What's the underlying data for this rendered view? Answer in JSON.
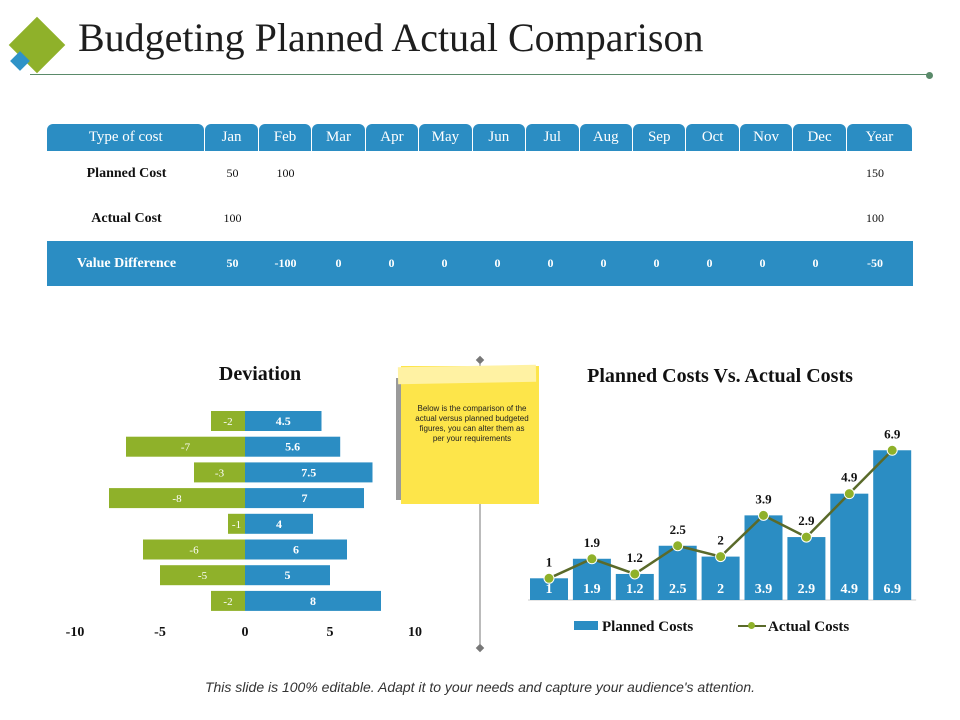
{
  "title": "Budgeting Planned Actual Comparison",
  "table": {
    "headers": [
      "Type of cost",
      "Jan",
      "Feb",
      "Mar",
      "Apr",
      "May",
      "Jun",
      "Jul",
      "Aug",
      "Sep",
      "Oct",
      "Nov",
      "Dec",
      "Year"
    ],
    "rows": [
      {
        "label": "Planned Cost",
        "cells": [
          "50",
          "100",
          "",
          "",
          "",
          "",
          "",
          "",
          "",
          "",
          "",
          "",
          "150"
        ]
      },
      {
        "label": "Actual Cost",
        "cells": [
          "100",
          "",
          "",
          "",
          "",
          "",
          "",
          "",
          "",
          "",
          "",
          "",
          "100"
        ]
      },
      {
        "label": "Value Difference",
        "cells": [
          "50",
          "-100",
          "0",
          "0",
          "0",
          "0",
          "0",
          "0",
          "0",
          "0",
          "0",
          "0",
          "-50"
        ]
      }
    ]
  },
  "note_text": "Below is the comparison of the actual versus planned budgeted figures, you can alter them as per your requirements",
  "footer": "This slide is 100% editable. Adapt it to your needs and capture your audience's attention.",
  "colors": {
    "blue": "#2b8dc3",
    "green": "#8fb12a",
    "line": "#5a6a2a"
  },
  "chart_data": [
    {
      "type": "bar",
      "orientation": "horizontal",
      "title": "Deviation",
      "series": [
        {
          "values": [
            -2,
            -7,
            -3,
            -8,
            -1,
            -6,
            -5,
            -2
          ]
        },
        {
          "values": [
            4.5,
            5.6,
            7.5,
            7,
            4,
            6,
            5,
            8
          ]
        }
      ],
      "xlim": [
        -10,
        10
      ],
      "x_ticks": [
        "-10",
        "-5",
        "0",
        "5",
        "10"
      ],
      "data_labels": true
    },
    {
      "type": "bar",
      "title": "Planned Costs Vs. Actual Costs",
      "series": [
        {
          "name": "Planned Costs",
          "type": "bar",
          "values": [
            1,
            1.9,
            1.2,
            2.5,
            2,
            3.9,
            2.9,
            4.9,
            6.9
          ]
        },
        {
          "name": "Actual Costs",
          "type": "line",
          "values": [
            1,
            1.9,
            1.2,
            2.5,
            2,
            3.9,
            2.9,
            4.9,
            6.9
          ]
        }
      ],
      "legend": "bottom",
      "data_labels": true
    }
  ]
}
